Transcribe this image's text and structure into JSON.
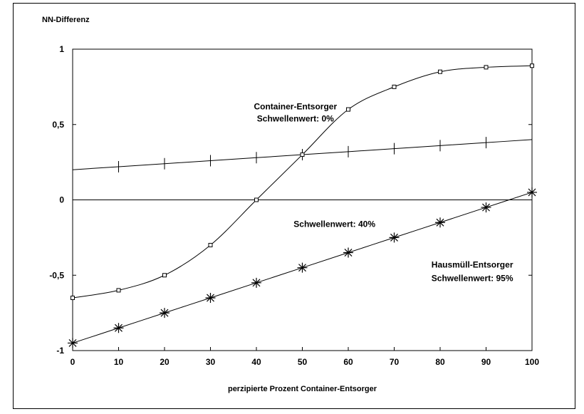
{
  "chart_data": {
    "type": "line",
    "ylabel": "NN-Differenz",
    "xlabel": "perzipierte Prozent Container-Entsorger",
    "xlim": [
      0,
      100
    ],
    "ylim": [
      -1,
      1
    ],
    "xticks": [
      0,
      10,
      20,
      30,
      40,
      50,
      60,
      70,
      80,
      90,
      100
    ],
    "yticks": [
      {
        "value": 1,
        "label": "1"
      },
      {
        "value": 0.5,
        "label": "0,5"
      },
      {
        "value": 0,
        "label": "0"
      },
      {
        "value": -0.5,
        "label": "-0,5"
      },
      {
        "value": -1,
        "label": "-1"
      }
    ],
    "grid": false,
    "reference_line_y": 0,
    "x": [
      0,
      10,
      20,
      30,
      40,
      50,
      60,
      70,
      80,
      90,
      100
    ],
    "series": [
      {
        "marker": "plus",
        "values": [
          0.2,
          0.22,
          0.24,
          0.26,
          0.28,
          0.3,
          0.32,
          0.34,
          0.36,
          0.38,
          0.4
        ]
      },
      {
        "marker": "square",
        "values": [
          -0.65,
          -0.6,
          -0.5,
          -0.3,
          0.0,
          0.3,
          0.6,
          0.75,
          0.85,
          0.88,
          0.89
        ]
      },
      {
        "marker": "asterisk",
        "values": [
          -0.95,
          -0.85,
          -0.75,
          -0.65,
          -0.55,
          -0.45,
          -0.35,
          -0.25,
          -0.15,
          -0.05,
          0.05
        ]
      }
    ],
    "annotations": [
      {
        "text": "Container-Entsorger",
        "x": 48.5,
        "y": 0.6
      },
      {
        "text": "Schwellenwert: 0%",
        "x": 48.5,
        "y": 0.52
      },
      {
        "text": "Schwellenwert: 40%",
        "x": 57,
        "y": -0.18
      },
      {
        "text": "Hausmüll-Entsorger",
        "x": 87,
        "y": -0.45
      },
      {
        "text": "Schwellenwert: 95%",
        "x": 87,
        "y": -0.54
      }
    ]
  }
}
